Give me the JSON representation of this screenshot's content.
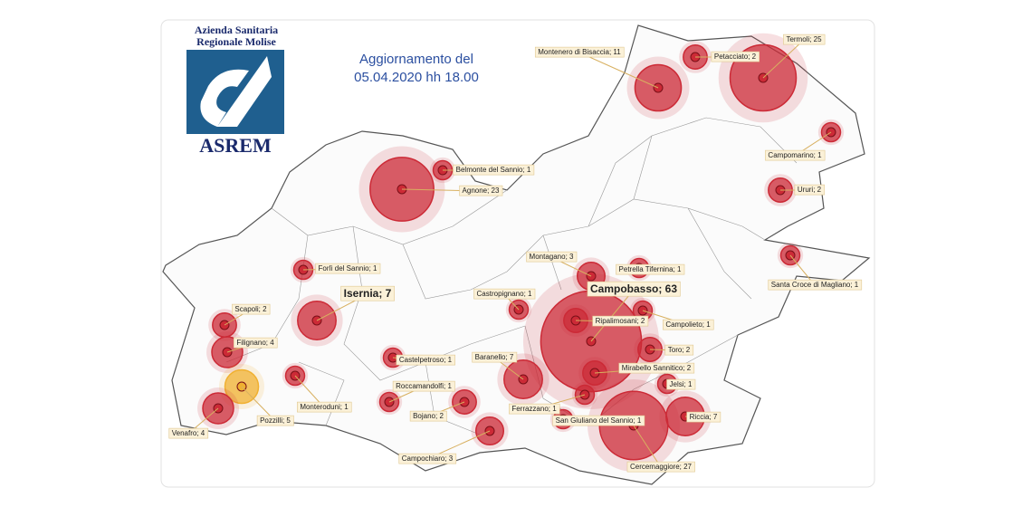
{
  "header": {
    "logo_line1": "Azienda Sanitaria",
    "logo_line2": "Regionale Molise",
    "logo_acronym": "ASREM",
    "update_line1": "Aggiornamento del",
    "update_line2": "05.04.2020 hh 18.00"
  },
  "marker_color": "#cc2a36",
  "places": [
    {
      "label": "Montenero di Bisaccia; 11",
      "cases": 11
    },
    {
      "label": "Petacciato; 2",
      "cases": 2
    },
    {
      "label": "Termoli; 25",
      "cases": 25
    },
    {
      "label": "Campomarino; 1",
      "cases": 1
    },
    {
      "label": "Belmonte del Sannio; 1",
      "cases": 1
    },
    {
      "label": "Agnone; 23",
      "cases": 23
    },
    {
      "label": "Ururi; 2",
      "cases": 2
    },
    {
      "label": "Santa Croce di Magliano; 1",
      "cases": 1
    },
    {
      "label": "Forlì del Sannio; 1",
      "cases": 1
    },
    {
      "label": "Montagano; 3",
      "cases": 3
    },
    {
      "label": "Petrella Tifernina; 1",
      "cases": 1
    },
    {
      "label": "Campobasso; 63",
      "cases": 63
    },
    {
      "label": "Castropignano; 1",
      "cases": 1
    },
    {
      "label": "Isernia; 7",
      "cases": 7
    },
    {
      "label": "Scapoli; 2",
      "cases": 2
    },
    {
      "label": "Ripalimosani; 2",
      "cases": 2
    },
    {
      "label": "Campolieto; 1",
      "cases": 1
    },
    {
      "label": "Filignano; 4",
      "cases": 4
    },
    {
      "label": "Castelpetroso; 1",
      "cases": 1
    },
    {
      "label": "Baranello; 7",
      "cases": 7
    },
    {
      "label": "Toro; 2",
      "cases": 2
    },
    {
      "label": "Mirabello Sannitico; 2",
      "cases": 2
    },
    {
      "label": "Jelsi; 1",
      "cases": 1
    },
    {
      "label": "Roccamandolfi; 1",
      "cases": 1
    },
    {
      "label": "Pozzilli; 5",
      "cases": 5,
      "color": "#f0b030"
    },
    {
      "label": "Monteroduni; 1",
      "cases": 1
    },
    {
      "label": "Venafro; 4",
      "cases": 4
    },
    {
      "label": "Bojano; 2",
      "cases": 2
    },
    {
      "label": "Ferrazzano; 1",
      "cases": 1
    },
    {
      "label": "San Giuliano del Sannio; 1",
      "cases": 1
    },
    {
      "label": "Riccia; 7",
      "cases": 7
    },
    {
      "label": "Campochiaro; 3",
      "cases": 3
    },
    {
      "label": "Cercemaggiore; 27",
      "cases": 27
    }
  ]
}
